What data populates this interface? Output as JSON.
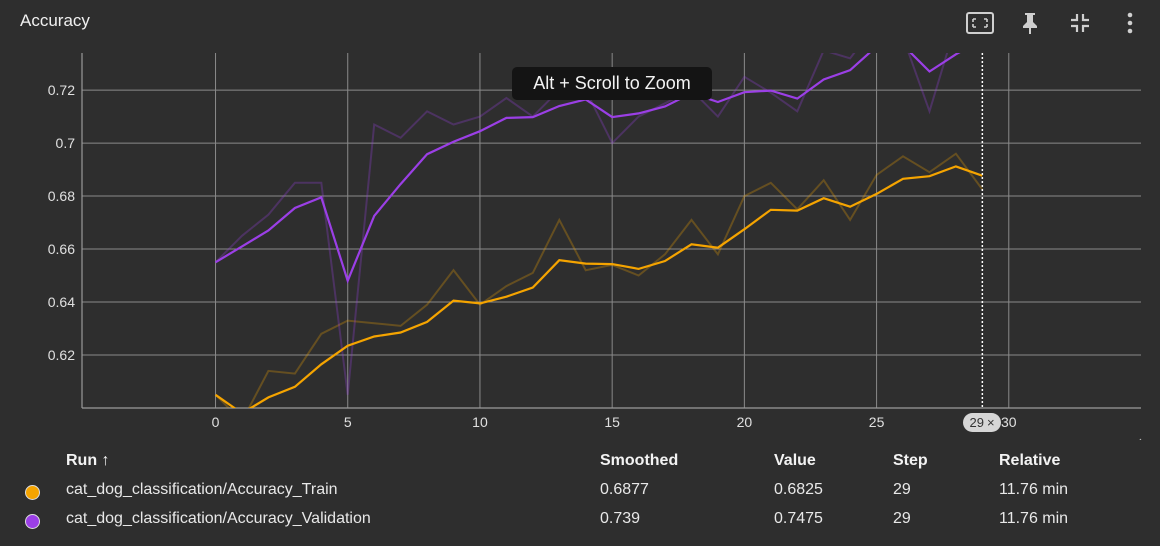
{
  "card": {
    "title": "Accuracy"
  },
  "toolbar": [
    {
      "name": "fit-domain-icon"
    },
    {
      "name": "pin-icon"
    },
    {
      "name": "collapse-icon"
    },
    {
      "name": "more-vert-icon"
    }
  ],
  "tooltip": {
    "text": "Alt + Scroll to Zoom"
  },
  "step_chip": {
    "label": "29",
    "close": "×"
  },
  "chart_data": {
    "type": "line",
    "xlim": [
      -5.05,
      35
    ],
    "ylim": [
      0.6,
      0.734
    ],
    "xticks": [
      0,
      5,
      10,
      15,
      20,
      25,
      30
    ],
    "yticks": [
      0.62,
      0.64,
      0.66,
      0.68,
      0.7,
      0.72
    ],
    "ytick_labels": [
      "0.62",
      "0.64",
      "0.66",
      "0.68",
      "0.7",
      "0.72"
    ],
    "x": [
      0,
      1,
      2,
      3,
      4,
      5,
      6,
      7,
      8,
      9,
      10,
      11,
      12,
      13,
      14,
      15,
      16,
      17,
      18,
      19,
      20,
      21,
      22,
      23,
      24,
      25,
      26,
      27,
      28,
      29
    ],
    "marker_step": 29,
    "series": [
      {
        "name": "cat_dog_classification/Accuracy_Train",
        "color": "#f5a400",
        "raw": [
          0.605,
          0.595,
          0.614,
          0.613,
          0.628,
          0.633,
          0.632,
          0.631,
          0.639,
          0.652,
          0.639,
          0.646,
          0.651,
          0.671,
          0.652,
          0.654,
          0.65,
          0.658,
          0.671,
          0.658,
          0.68,
          0.685,
          0.675,
          0.686,
          0.671,
          0.688,
          0.695,
          0.689,
          0.696,
          0.6825
        ],
        "smoothed": [
          0.605,
          0.598,
          0.604,
          0.608,
          0.6165,
          0.6235,
          0.627,
          0.6285,
          0.6325,
          0.6405,
          0.6395,
          0.642,
          0.6455,
          0.6558,
          0.6545,
          0.6543,
          0.6525,
          0.6555,
          0.6618,
          0.6605,
          0.6675,
          0.6748,
          0.6745,
          0.6792,
          0.676,
          0.6808,
          0.6865,
          0.6875,
          0.6912,
          0.6877
        ]
      },
      {
        "name": "cat_dog_classification/Accuracy_Validation",
        "color": "#9b3fe6",
        "raw": [
          0.655,
          0.665,
          0.673,
          0.685,
          0.685,
          0.605,
          0.707,
          0.702,
          0.712,
          0.707,
          0.71,
          0.717,
          0.71,
          0.72,
          0.72,
          0.7,
          0.71,
          0.715,
          0.72,
          0.71,
          0.725,
          0.719,
          0.712,
          0.735,
          0.732,
          0.745,
          0.74,
          0.712,
          0.745,
          0.7475
        ],
        "smoothed": [
          0.655,
          0.661,
          0.667,
          0.6755,
          0.6795,
          0.648,
          0.6725,
          0.6845,
          0.6958,
          0.7005,
          0.7045,
          0.7095,
          0.7098,
          0.714,
          0.7165,
          0.7098,
          0.7112,
          0.7138,
          0.7188,
          0.7155,
          0.7192,
          0.7198,
          0.7168,
          0.724,
          0.7275,
          0.7365,
          0.737,
          0.727,
          0.7335,
          0.739
        ]
      }
    ]
  },
  "legend": {
    "headers": {
      "run": "Run ↑",
      "smoothed": "Smoothed",
      "value": "Value",
      "step": "Step",
      "relative": "Relative"
    },
    "rows": [
      {
        "run": "cat_dog_classification/Accuracy_Train",
        "smoothed": "0.6877",
        "value": "0.6825",
        "step": "29",
        "relative": "11.76 min",
        "color": "#f5a400"
      },
      {
        "run": "cat_dog_classification/Accuracy_Validation",
        "smoothed": "0.739",
        "value": "0.7475",
        "step": "29",
        "relative": "11.76 min",
        "color": "#9b3fe6"
      }
    ]
  }
}
